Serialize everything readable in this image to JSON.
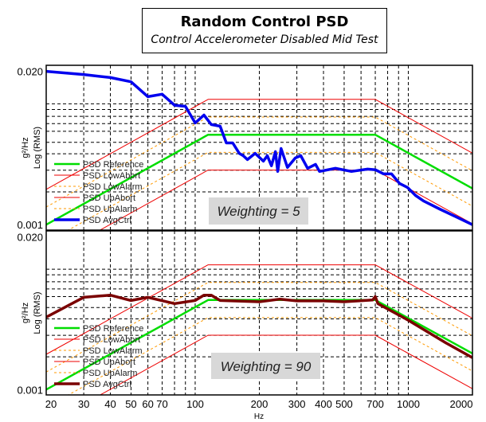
{
  "chart_data": [
    {
      "type": "line",
      "title": "Random Control PSD",
      "subtitle": "Control Accelerometer Disabled Mid Test",
      "xlabel": "",
      "ylabel": "g²/Hz",
      "ylabel2": "Log (RMS)",
      "xscale": "log",
      "yscale": "log",
      "xlim": [
        20,
        2000
      ],
      "ylim": [
        0.0009,
        0.0225
      ],
      "ytick_labels": [
        "0.020",
        "0.001"
      ],
      "ytick_values": [
        0.02,
        0.001
      ],
      "grid": true,
      "hgrid_values": [
        0.0106,
        0.0095,
        0.0083,
        0.0072,
        0.0062,
        0.005,
        0.004,
        0.0029,
        0.0019
      ],
      "vgrid_values": [
        30,
        40,
        50,
        60,
        70,
        80,
        90,
        100,
        200,
        300,
        400,
        500,
        600,
        700,
        800,
        900,
        1000
      ],
      "annotation": "Weighting = 5",
      "legend_position": "bottom-left",
      "series": [
        {
          "name": "PSD Reference",
          "color": "#00dd00",
          "style": "solid-thick",
          "points": [
            [
              20,
              0.001
            ],
            [
              115,
              0.0058
            ],
            [
              700,
              0.0058
            ],
            [
              2000,
              0.00203
            ]
          ]
        },
        {
          "name": "PSD LowAbort",
          "color": "#ee0000",
          "style": "solid-thin",
          "offset_db": -3
        },
        {
          "name": "PSD LowAlarm",
          "color": "#ff9900",
          "style": "dashed",
          "offset_db": -1.5
        },
        {
          "name": "PSD UpAbort",
          "color": "#ee0000",
          "style": "solid-thin",
          "offset_db": 3
        },
        {
          "name": "PSD UpAlarm",
          "color": "#ff9900",
          "style": "dashed",
          "offset_db": 1.5
        },
        {
          "name": "PSD AvgCtrl",
          "color": "#0000ee",
          "style": "solid-bold",
          "points": [
            [
              20,
              0.02
            ],
            [
              30,
              0.0188
            ],
            [
              40,
              0.0177
            ],
            [
              50,
              0.0163
            ],
            [
              60,
              0.0122
            ],
            [
              70,
              0.0128
            ],
            [
              80,
              0.0103
            ],
            [
              90,
              0.0101
            ],
            [
              100,
              0.0073
            ],
            [
              110,
              0.00851
            ],
            [
              119,
              0.00707
            ],
            [
              131,
              0.00685
            ],
            [
              140,
              0.00494
            ],
            [
              150,
              0.00494
            ],
            [
              161,
              0.00403
            ],
            [
              168,
              0.00385
            ],
            [
              176,
              0.00357
            ],
            [
              191,
              0.00403
            ],
            [
              209,
              0.00346
            ],
            [
              218,
              0.00385
            ],
            [
              228,
              0.00316
            ],
            [
              238,
              0.00417
            ],
            [
              244,
              0.00283
            ],
            [
              253,
              0.00443
            ],
            [
              271,
              0.00306
            ],
            [
              295,
              0.00368
            ],
            [
              313,
              0.00385
            ],
            [
              337,
              0.00301
            ],
            [
              367,
              0.00325
            ],
            [
              383,
              0.00283
            ],
            [
              455,
              0.00301
            ],
            [
              541,
              0.00283
            ],
            [
              644,
              0.00296
            ],
            [
              702,
              0.00292
            ],
            [
              766,
              0.0027
            ],
            [
              834,
              0.0027
            ],
            [
              910,
              0.00224
            ],
            [
              991,
              0.00207
            ],
            [
              1082,
              0.00177
            ],
            [
              1180,
              0.00159
            ],
            [
              1403,
              0.00136
            ],
            [
              1668,
              0.00117
            ],
            [
              2000,
              0.001
            ]
          ]
        }
      ]
    },
    {
      "type": "line",
      "xlabel": "Hz",
      "ylabel": "g²/Hz",
      "ylabel2": "Log (RMS)",
      "xscale": "log",
      "yscale": "log",
      "xlim": [
        20,
        2000
      ],
      "ylim": [
        0.0009,
        0.0225
      ],
      "xtick_labels": [
        "20",
        "30",
        "40",
        "50",
        "60",
        "70",
        "100",
        "200",
        "300",
        "400",
        "500",
        "700",
        "1000",
        "2000"
      ],
      "xtick_values": [
        20,
        30,
        40,
        50,
        60,
        70,
        100,
        200,
        300,
        400,
        500,
        700,
        1000,
        2000
      ],
      "ytick_labels": [
        "0.020",
        "0.001"
      ],
      "ytick_values": [
        0.02,
        0.001
      ],
      "grid": true,
      "hgrid_values": [
        0.0106,
        0.0095,
        0.0083,
        0.0072,
        0.0062,
        0.005,
        0.004,
        0.0029,
        0.0019
      ],
      "vgrid_values": [
        30,
        40,
        50,
        60,
        70,
        80,
        90,
        100,
        200,
        300,
        400,
        500,
        600,
        700,
        800,
        900,
        1000
      ],
      "annotation": "Weighting = 90",
      "legend_position": "bottom-left",
      "series": [
        {
          "name": "PSD Reference",
          "color": "#00dd00",
          "style": "solid-thick",
          "points": [
            [
              20,
              0.001
            ],
            [
              115,
              0.0058
            ],
            [
              700,
              0.0058
            ],
            [
              2000,
              0.00203
            ]
          ]
        },
        {
          "name": "PSD LowAbort",
          "color": "#ee0000",
          "style": "solid-thin",
          "offset_db": -3
        },
        {
          "name": "PSD LowAlarm",
          "color": "#ff9900",
          "style": "dashed",
          "offset_db": -1.5
        },
        {
          "name": "PSD UpAbort",
          "color": "#ee0000",
          "style": "solid-thin",
          "offset_db": 3
        },
        {
          "name": "PSD UpAlarm",
          "color": "#ff9900",
          "style": "dashed",
          "offset_db": 1.5
        },
        {
          "name": "PSD AvgCtrl",
          "color": "#7a0000",
          "style": "solid-bold",
          "points": [
            [
              20,
              0.00414
            ],
            [
              30,
              0.00611
            ],
            [
              40,
              0.00638
            ],
            [
              50,
              0.00574
            ],
            [
              60,
              0.00611
            ],
            [
              80,
              0.0054
            ],
            [
              100,
              0.00574
            ],
            [
              110,
              0.00638
            ],
            [
              119,
              0.00638
            ],
            [
              131,
              0.00574
            ],
            [
              200,
              0.0056
            ],
            [
              250,
              0.0059
            ],
            [
              300,
              0.0057
            ],
            [
              400,
              0.0057
            ],
            [
              500,
              0.0056
            ],
            [
              680,
              0.0058
            ],
            [
              700,
              0.0062
            ],
            [
              720,
              0.0054
            ],
            [
              1000,
              0.0039
            ],
            [
              1500,
              0.0025
            ],
            [
              2000,
              0.00187
            ]
          ]
        }
      ]
    }
  ]
}
